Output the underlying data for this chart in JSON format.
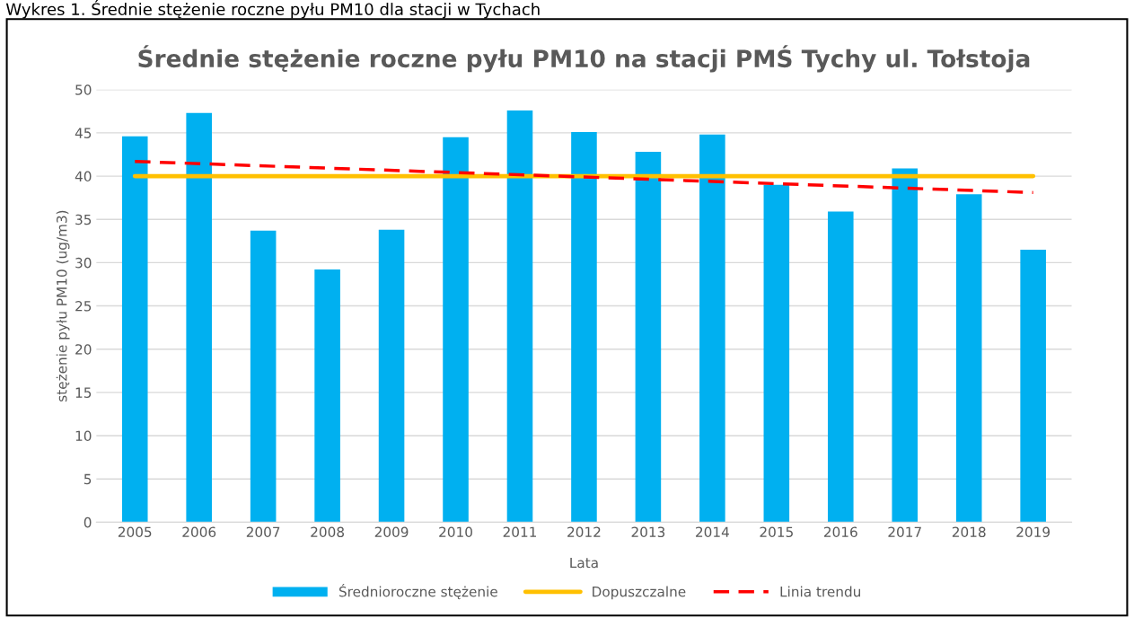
{
  "chart_data": {
    "type": "bar",
    "title": "Średnie stężenie roczne pyłu PM10 na stacji PMŚ Tychy ul. Tołstoja",
    "xlabel": "Lata",
    "ylabel": "stężenie pyłu PM10 (ug/m3)",
    "annotations": [
      "Wykres 1. Średnie stężenie roczne pyłu PM10 dla stacji w Tychach"
    ],
    "categories": [
      "2005",
      "2006",
      "2007",
      "2008",
      "2009",
      "2010",
      "2011",
      "2012",
      "2013",
      "2014",
      "2015",
      "2016",
      "2017",
      "2018",
      "2019"
    ],
    "series": [
      {
        "name": "Średnioroczne stężenie",
        "color": "#00b0f0",
        "values": [
          44.6,
          47.3,
          33.7,
          29.2,
          33.8,
          44.5,
          47.6,
          45.1,
          42.8,
          44.8,
          39.0,
          35.9,
          40.9,
          37.9,
          31.5
        ]
      },
      {
        "name": "Dopuszczalne",
        "type": "line",
        "color": "#ffc000",
        "line_style": "solid",
        "values": [
          40,
          40,
          40,
          40,
          40,
          40,
          40,
          40,
          40,
          40,
          40,
          40,
          40,
          40,
          40
        ]
      },
      {
        "name": "Linia trendu",
        "type": "line",
        "color": "#ff0000",
        "line_style": "dashed",
        "values": [
          41.7,
          null,
          null,
          null,
          null,
          null,
          null,
          null,
          null,
          null,
          null,
          null,
          null,
          null,
          38.1
        ]
      }
    ],
    "ylim": [
      0,
      50
    ],
    "yticks": [
      0,
      5,
      10,
      15,
      20,
      25,
      30,
      35,
      40,
      45,
      50
    ],
    "grid": "y",
    "legend": "bottom"
  }
}
